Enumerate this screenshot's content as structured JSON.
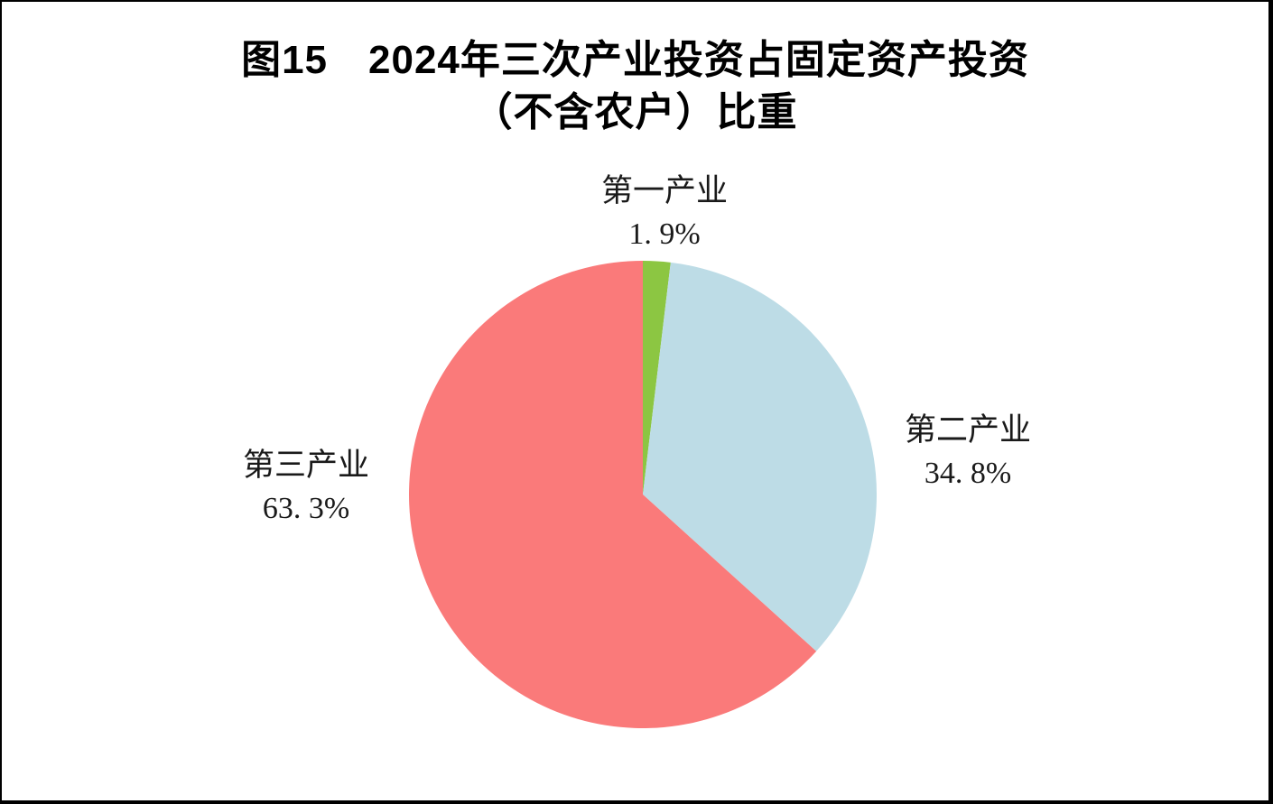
{
  "title": {
    "line1": "图15　2024年三次产业投资占固定资产投资",
    "line2": "（不含农户）比重"
  },
  "chart_data": {
    "type": "pie",
    "title": "图15 2024年三次产业投资占固定资产投资（不含农户）比重",
    "start_angle_deg": 0,
    "direction": "clockwise",
    "legend_position": "none",
    "categories": [
      "第一产业",
      "第二产业",
      "第三产业"
    ],
    "values": [
      1.9,
      34.8,
      63.3
    ],
    "slices": [
      {
        "name": "primary-industry",
        "label": "第一产业",
        "value": 1.9,
        "display": "1. 9%",
        "color": "#8cc642"
      },
      {
        "name": "secondary-industry",
        "label": "第二产业",
        "value": 34.8,
        "display": "34. 8%",
        "color": "#bddce6"
      },
      {
        "name": "tertiary-industry",
        "label": "第三产业",
        "value": 63.3,
        "display": "63. 3%",
        "color": "#fa7a7a"
      }
    ]
  }
}
